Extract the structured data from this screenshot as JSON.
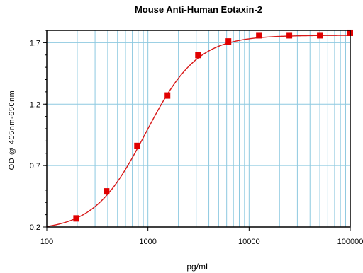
{
  "chart_data": {
    "type": "scatter",
    "title": "Mouse Anti-Human Eotaxin-2",
    "xlabel": "pg/mL",
    "ylabel": "OD @ 405nm-650nm",
    "x_scale": "log",
    "xlim": [
      100,
      100000
    ],
    "ylim": [
      0.2,
      1.8
    ],
    "x_ticks": [
      "100",
      "1000",
      "10000",
      "100000"
    ],
    "y_ticks": [
      "0.2",
      "0.7",
      "1.2",
      "1.7"
    ],
    "grid": true,
    "series": [
      {
        "marker": "square",
        "color": "#e00000",
        "x": [
          195,
          390,
          780,
          1560,
          3125,
          6250,
          12500,
          25000,
          50000,
          100000
        ],
        "y": [
          0.27,
          0.49,
          0.86,
          1.27,
          1.6,
          1.71,
          1.76,
          1.76,
          1.76,
          1.78
        ]
      }
    ],
    "fit_curve": {
      "color": "#d81818",
      "bottom": 0.17,
      "top": 1.76,
      "ec50": 950,
      "hill": 1.7
    }
  }
}
